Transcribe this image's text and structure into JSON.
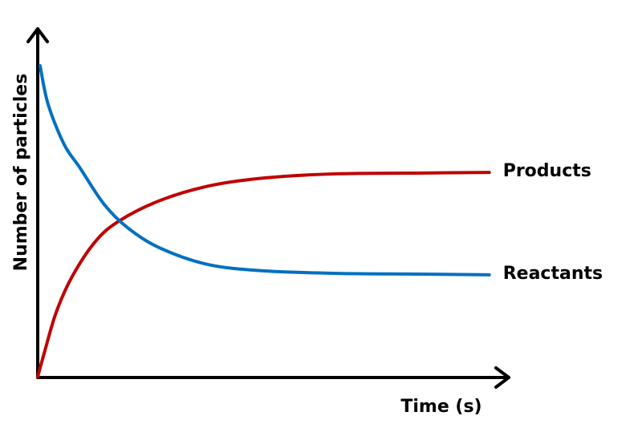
{
  "chart_data": {
    "type": "line",
    "x_label": "Time (s)",
    "y_label": "Number of particles",
    "xlim": [
      0,
      100
    ],
    "ylim": [
      0,
      100
    ],
    "series": [
      {
        "name": "Products",
        "color": "#c00000",
        "x": [
          0,
          1.4,
          3.9,
          7.3,
          12.4,
          17.5,
          26.0,
          36.2,
          48.1,
          63.4,
          80.4,
          95.7
        ],
        "values": [
          0.2,
          7.1,
          18.6,
          28.9,
          39.2,
          45.0,
          50.7,
          54.8,
          57.1,
          58.3,
          58.5,
          58.7
        ]
      },
      {
        "name": "Reactants",
        "color": "#0070c0",
        "x": [
          0.5,
          2.2,
          5.6,
          9.0,
          14.1,
          19.2,
          26.0,
          36.2,
          48.1,
          63.4,
          80.4,
          95.7
        ],
        "values": [
          89.2,
          78.2,
          66.7,
          59.9,
          49.5,
          42.7,
          37.0,
          32.3,
          30.5,
          29.8,
          29.6,
          29.4
        ]
      }
    ]
  }
}
